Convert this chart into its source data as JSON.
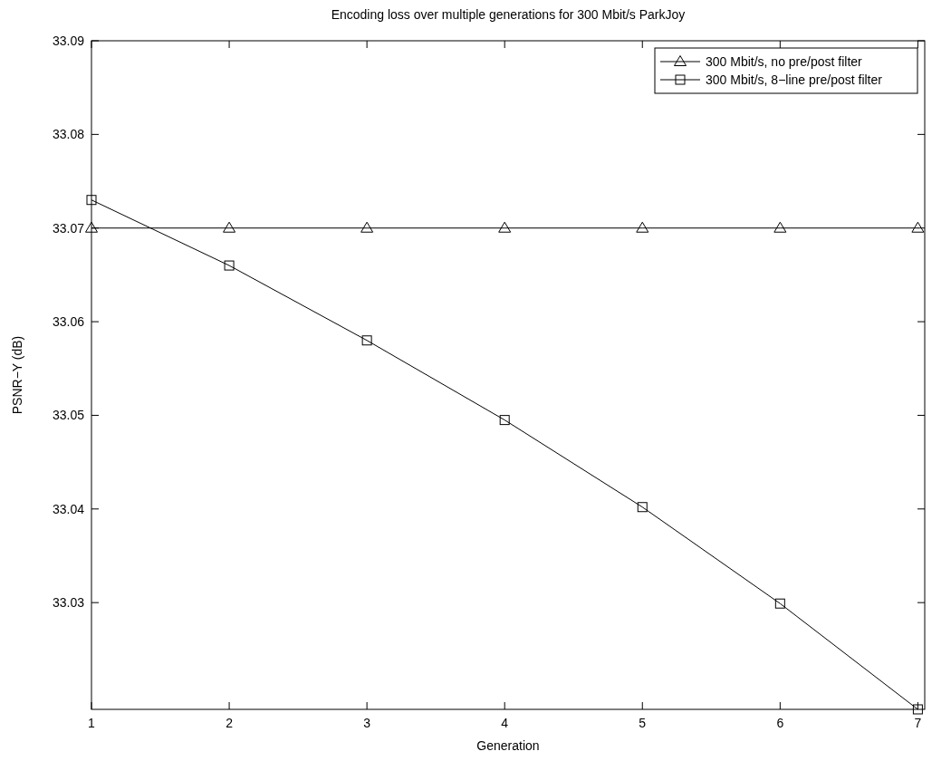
{
  "chart_data": {
    "type": "line",
    "title": "Encoding loss over multiple generations for 300 Mbit/s ParkJoy",
    "xlabel": "Generation",
    "ylabel": "PSNR−Y (dB)",
    "x": [
      1,
      2,
      3,
      4,
      5,
      6,
      7
    ],
    "series": [
      {
        "name": "300 Mbit/s, no pre/post filter",
        "color": "#000000",
        "marker": "triangle",
        "values": [
          33.07,
          33.07,
          33.07,
          33.07,
          33.07,
          33.07,
          33.07
        ]
      },
      {
        "name": "300 Mbit/s, 8−line pre/post filter",
        "color": "#000000",
        "marker": "square",
        "values": [
          33.073,
          33.066,
          33.058,
          33.0495,
          33.0402,
          33.0299,
          33.0186
        ]
      }
    ],
    "xlim": [
      1,
      7.05
    ],
    "xticks": [
      1,
      2,
      3,
      4,
      5,
      6,
      7
    ],
    "ylim": [
      33.0186,
      33.09
    ],
    "yticks": [
      33.03,
      33.04,
      33.05,
      33.06,
      33.07,
      33.08,
      33.09
    ],
    "grid": false,
    "legend": "top right",
    "line_style": "solid"
  }
}
